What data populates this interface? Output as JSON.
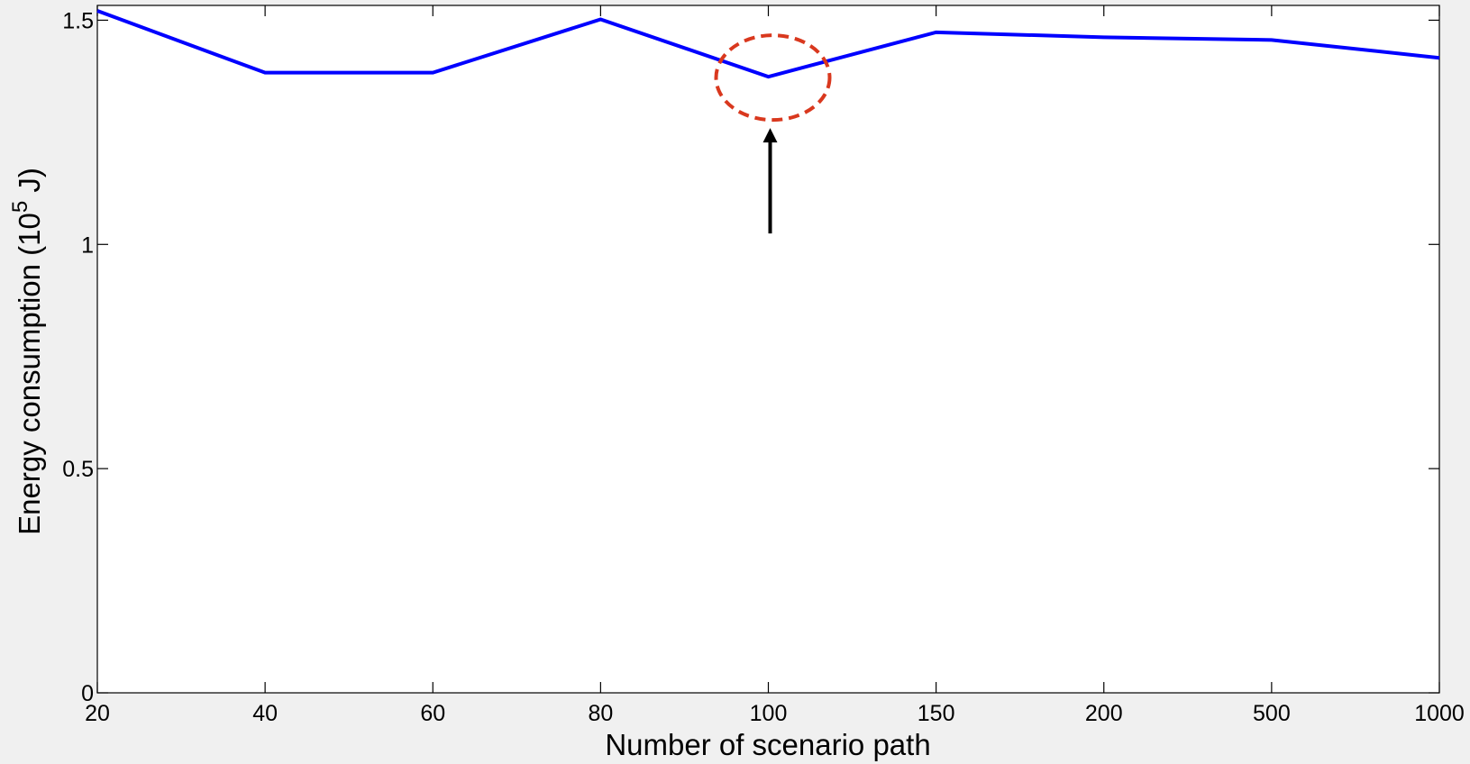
{
  "chart_data": {
    "type": "line",
    "x_label": "Number of scenario path",
    "y_label": {
      "before": "Energy consumption (10",
      "superscript": "5",
      "after": " J)"
    },
    "categories": [
      "20",
      "40",
      "60",
      "80",
      "100",
      "150",
      "200",
      "500",
      "1000"
    ],
    "series": [
      {
        "color": "#0000ff",
        "values": [
          1.521,
          1.383,
          1.383,
          1.502,
          1.374,
          1.473,
          1.462,
          1.456,
          1.416
        ]
      }
    ],
    "ylim": [
      0,
      1.533
    ],
    "yticks": [
      0,
      0.5,
      1,
      1.5
    ],
    "grid": false
  }
}
